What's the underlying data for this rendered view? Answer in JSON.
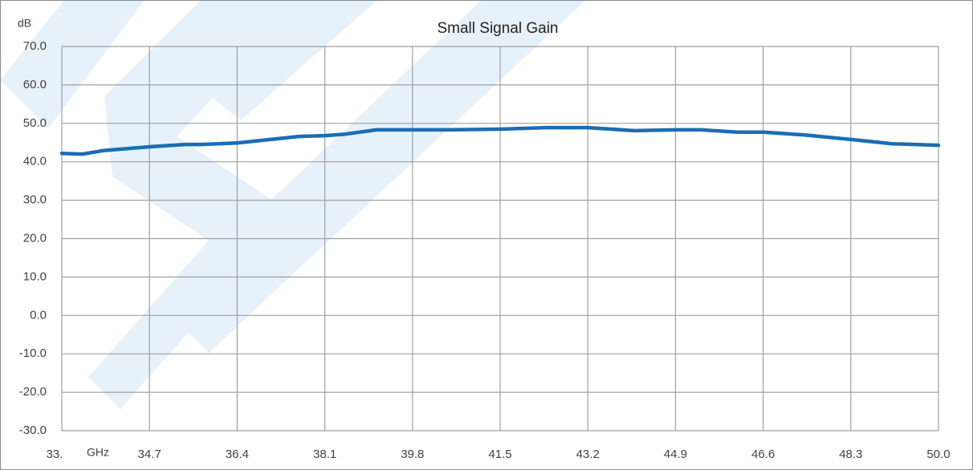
{
  "chart_data": {
    "type": "line",
    "title": "Small Signal Gain",
    "y_label": "dB",
    "x_label": "GHz",
    "x": [
      33,
      33.4,
      33.8,
      34.7,
      35.4,
      35.7,
      36.4,
      36.9,
      37.6,
      38.1,
      38.5,
      39.1,
      39.8,
      40.5,
      41.5,
      42.4,
      42.9,
      43.2,
      44.1,
      44.9,
      45.4,
      46.1,
      46.6,
      47.4,
      48.3,
      49.1,
      50
    ],
    "series": [
      {
        "name": "Small Signal Gain",
        "color": "#1b6db3",
        "values": [
          42.2,
          42.0,
          42.9,
          43.9,
          44.5,
          44.5,
          44.9,
          45.6,
          46.6,
          46.8,
          47.2,
          48.3,
          48.3,
          48.3,
          48.5,
          48.9,
          48.9,
          48.9,
          48.1,
          48.3,
          48.3,
          47.7,
          47.7,
          47.0,
          45.8,
          44.7,
          44.3
        ]
      }
    ],
    "xlim": [
      33,
      50
    ],
    "xticks": [
      {
        "value": 33,
        "label": "33."
      },
      34.7,
      36.4,
      38.1,
      39.8,
      41.5,
      43.2,
      44.9,
      46.6,
      48.3,
      {
        "value": 50,
        "label": "50.0"
      }
    ],
    "ylim": [
      -30,
      70
    ],
    "yticks": [
      {
        "value": -30,
        "label": "-30.0"
      },
      {
        "value": -20,
        "label": "-20.0"
      },
      {
        "value": -10,
        "label": "-10.0"
      },
      {
        "value": 0,
        "label": "0.0"
      },
      {
        "value": 10,
        "label": "10.0"
      },
      {
        "value": 20,
        "label": "20.0"
      },
      {
        "value": 30,
        "label": "30.0"
      },
      {
        "value": 40,
        "label": "40.0"
      },
      {
        "value": 50,
        "label": "50.0"
      },
      {
        "value": 60,
        "label": "60.0"
      },
      {
        "value": 70,
        "label": "70.0"
      }
    ],
    "grid": true
  }
}
